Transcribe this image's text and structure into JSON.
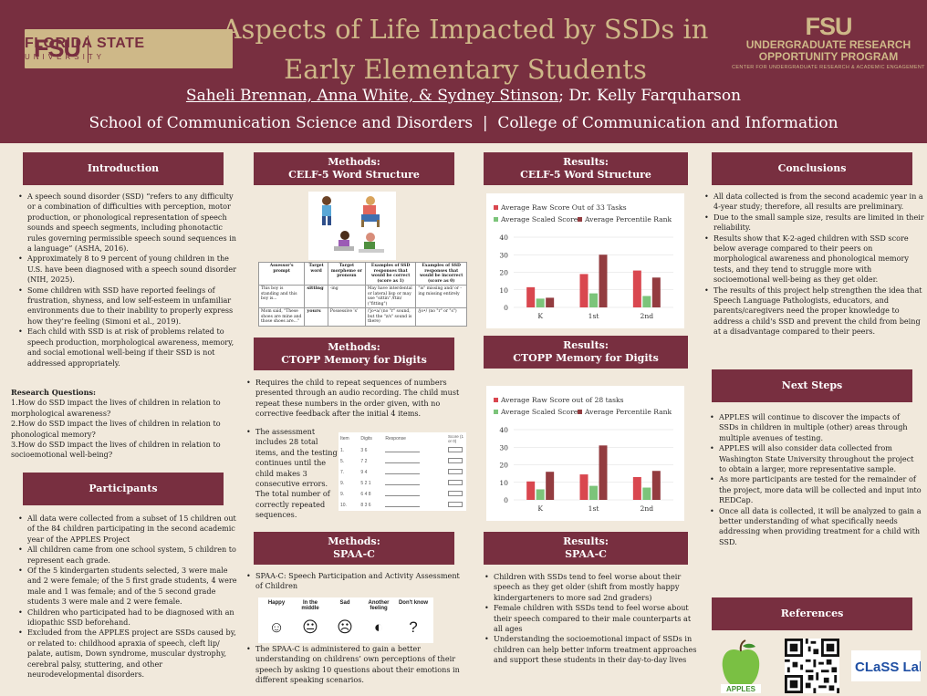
{
  "header": {
    "fsu_logo": {
      "mark": "FSU",
      "name": "FLORIDA STATE",
      "sub": "UNIVERSITY"
    },
    "title_line1": "Aspects of Life Impacted by SSDs in",
    "title_line2": "Early Elementary Students",
    "authors_underlined": "Saheli Brennan, Anna White, & Sydney Stinson",
    "authors_rest": "; Dr. Kelly Farquharson",
    "school": "School of Communication Science and Disorders  |  College of Communication and Information",
    "urop": {
      "mark": "FSU",
      "line1": "UNDERGRADUATE RESEARCH",
      "line2": "OPPORTUNITY PROGRAM",
      "line3": "CENTER FOR UNDERGRADUATE RESEARCH & ACADEMIC ENGAGEMENT"
    }
  },
  "introduction": {
    "heading": "Introduction",
    "bullets": [
      "A speech sound disorder (SSD) “refers to any difficulty or a combination of difficulties with perception, motor production, or phonological representation of speech sounds and speech segments, including phonotactic rules governing permissible speech sound sequences in a language” (ASHA, 2016).",
      "Approximately 8 to 9 percent of young children in the U.S. have been diagnosed with a speech sound disorder (NIH, 2025).",
      "Some children with SSD have reported feelings of frustration, shyness, and low self-esteem in unfamiliar environments due to their inability to properly express how they’re feeling (Simoni et al., 2019).",
      "Each child with SSD is at risk of problems related to speech production, morphological awareness, memory, and social emotional well-being if their SSD is not addressed appropriately."
    ],
    "rq_heading": "Research Questions:",
    "questions": [
      "1.How do SSD impact the lives of children in relation to morphological awareness?",
      "2.How do SSD impact the lives of children in relation to phonological memory?",
      "3.How do SSD impact the lives of children in relation to socioemotional well-being?"
    ]
  },
  "participants": {
    "heading": "Participants",
    "bullets": [
      "All data were collected from a subset of 15 children out of the 84 children participating in the second academic year of the APPLES Project",
      "All children came from one school system, 5 children to represent each grade.",
      "Of the 5 kindergarten students selected, 3 were male and 2 were female; of the 5 first grade students, 4 were male and 1 was female; and of the 5 second grade students 3 were male and 2 were female.",
      "Children who participated had to be diagnosed with an idiopathic SSD beforehand.",
      "Excluded from the APPLES project are SSDs caused by, or related to: childhood apraxia of speech, cleft lip/ palate, autism, Down syndrome, muscular dystrophy, cerebral palsy, stuttering, and other neurodevelopmental disorders."
    ]
  },
  "methods_celf": {
    "heading1": "Methods:",
    "heading2": "CELF-5 Word Structure",
    "table": {
      "headers": [
        "Assessor's prompt",
        "Target word",
        "Target morpheme or pronoun",
        "Examples of SSD responses that would be correct (score as 1)",
        "Examples of SSD responses that would be incorrect (score as 0)"
      ],
      "rows": [
        [
          "This boy is standing and this boy is...",
          "sitting",
          "-ing",
          "May have interdental or lateral lisp or may use \"sittin\" /ftin/ (\"fitting\")",
          "\"is\" missing and/ or -ing missing entirely"
        ],
        [
          "Mom said, \"These shoes are mine and those shoes are...\"",
          "yours",
          "Possessive 's'",
          "/'jo•a/ (no \"r\" sound, but the \"z/s\" sound is there)",
          "/jo•/ (no \"r\" or \"s\")"
        ]
      ]
    }
  },
  "methods_ctopp": {
    "heading1": "Methods:",
    "heading2": "CTOPP Memory for Digits",
    "bullets": [
      "Requires the child to repeat sequences of numbers presented through an audio recording. The child must repeat these numbers in the order given, with no corrective feedback after the initial 4 items.",
      "The assessment includes 28 total items, and the testing continues until the child makes 3 consecutive errors. The total number of correctly repeated sequences."
    ],
    "table": {
      "headers": [
        "Item",
        "Digits",
        "Response",
        "Score (1 or 0)"
      ],
      "rows": [
        [
          "1.",
          "3 6"
        ],
        [
          "5.",
          "7 2"
        ],
        [
          "7.",
          "9 4"
        ],
        [
          "9.",
          "5 2 1"
        ],
        [
          "9.",
          "6 4 8"
        ],
        [
          "10.",
          "8 3 6"
        ]
      ]
    }
  },
  "methods_spaa": {
    "heading1": "Methods:",
    "heading2": "SPAA-C",
    "bullets": [
      "SPAA-C:  Speech Participation and Activity Assessment of Children",
      "The SPAA-C is administered to gain a better understanding on childrens’ own perceptions of their speech by asking 10 questions about their emotions in different speaking scenarios."
    ],
    "scale": [
      {
        "label": "Happy",
        "face": "☺"
      },
      {
        "label": "In the middle",
        "face": "😐"
      },
      {
        "label": "Sad",
        "face": "☹"
      },
      {
        "label": "Another feeling",
        "face": "◐"
      },
      {
        "label": "Don't know",
        "face": "?"
      }
    ]
  },
  "results_celf": {
    "heading1": "Results:",
    "heading2": "CELF-5 Word Structure",
    "chart_data": {
      "type": "bar",
      "categories": [
        "K",
        "1st",
        "2nd"
      ],
      "series": [
        {
          "name": "Average Raw Score Out of 33 Tasks",
          "values": [
            11.5,
            19,
            21
          ],
          "color": "#d9474f"
        },
        {
          "name": "Average Scaled Score",
          "values": [
            5,
            8,
            6.5
          ],
          "color": "#7cc47a"
        },
        {
          "name": "Average Percentile Rank",
          "values": [
            5.5,
            30,
            17
          ],
          "color": "#933c40"
        }
      ],
      "ylim": [
        0,
        40
      ],
      "yticks": [
        0,
        10,
        20,
        30,
        40
      ]
    }
  },
  "results_ctopp": {
    "heading1": "Results:",
    "heading2": "CTOPP Memory for Digits",
    "chart_data": {
      "type": "bar",
      "categories": [
        "K",
        "1st",
        "2nd"
      ],
      "series": [
        {
          "name": "Average Raw Score out of 28 tasks",
          "values": [
            10.5,
            14.5,
            13
          ],
          "color": "#d9474f"
        },
        {
          "name": "Average Scaled Score",
          "values": [
            6,
            8,
            7
          ],
          "color": "#7cc47a"
        },
        {
          "name": "Average Percentile Rank",
          "values": [
            16,
            31,
            16.5
          ],
          "color": "#933c40"
        }
      ],
      "ylim": [
        0,
        40
      ],
      "yticks": [
        0,
        10,
        20,
        30,
        40
      ]
    }
  },
  "results_spaa": {
    "heading1": "Results:",
    "heading2": "SPAA-C",
    "bullets": [
      "Children with SSDs tend to feel worse about their speech as they get older (shift from mostly happy kindergarteners to more sad 2nd graders)",
      "Female children with SSDs tend to feel worse about their speech compared to their male counterparts at all ages",
      "Understanding the socioemotional impact of SSDs in children can help better inform treatment approaches and support these students in their day-to-day lives"
    ]
  },
  "conclusions": {
    "heading": "Conclusions",
    "bullets": [
      "All data collected is from the second academic year in a 4-year study; therefore, all results are preliminary.",
      "Due to the small sample size, results are limited in their reliability.",
      "Results show that K-2-aged children with SSD score below average compared to their peers on morphological awareness and phonological memory tests, and they tend to struggle more with socioemotional well-being as they get older.",
      "The results of this project help strengthen the idea that Speech Language Pathologists, educators, and parents/caregivers need the proper knowledge to address a child's SSD and prevent the child from being at a disadvantage compared to their peers."
    ]
  },
  "next_steps": {
    "heading": "Next Steps",
    "bullets": [
      "APPLES will continue to discover the impacts of SSDs in children in multiple (other) areas through multiple avenues of testing.",
      "APPLES will also consider data collected from Washington State University throughout the project to obtain a larger, more representative sample.",
      "As more participants are tested for the remainder of the project, more data will be collected and input into REDCap.",
      "Once all data is collected, it will be analyzed to gain a better understanding of what specifically needs addressing when providing treatment for a child with SSD."
    ]
  },
  "references": {
    "heading": "References",
    "apples_label": "APPLES",
    "class_lab_label": "CLaSS Lab"
  }
}
